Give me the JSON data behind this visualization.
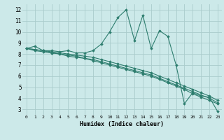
{
  "xlabel": "Humidex (Indice chaleur)",
  "bg_color": "#cce9e9",
  "line_color": "#2d7d6e",
  "grid_color": "#aacccc",
  "x_ticks": [
    0,
    1,
    2,
    3,
    4,
    5,
    6,
    7,
    8,
    9,
    10,
    11,
    12,
    13,
    14,
    15,
    16,
    17,
    18,
    19,
    20,
    21,
    22,
    23
  ],
  "y_ticks": [
    3,
    4,
    5,
    6,
    7,
    8,
    9,
    10,
    11,
    12
  ],
  "ylim": [
    2.5,
    12.5
  ],
  "xlim": [
    -0.5,
    23.5
  ],
  "series": [
    [
      8.5,
      8.7,
      8.3,
      8.3,
      8.2,
      8.3,
      8.1,
      8.1,
      8.3,
      8.9,
      10.0,
      11.3,
      12.0,
      9.2,
      11.5,
      8.5,
      10.1,
      9.6,
      7.0,
      3.5,
      4.5,
      4.2,
      4.1,
      2.8
    ],
    [
      8.5,
      8.3,
      8.2,
      8.1,
      8.0,
      7.8,
      7.7,
      7.6,
      7.4,
      7.2,
      7.0,
      6.8,
      6.6,
      6.4,
      6.2,
      6.0,
      5.7,
      5.4,
      5.1,
      4.8,
      4.4,
      4.1,
      3.8,
      3.5
    ],
    [
      8.5,
      8.4,
      8.3,
      8.1,
      8.0,
      7.9,
      7.8,
      7.6,
      7.5,
      7.3,
      7.1,
      6.9,
      6.7,
      6.5,
      6.3,
      6.1,
      5.8,
      5.5,
      5.2,
      4.9,
      4.6,
      4.3,
      4.0,
      3.6
    ],
    [
      8.5,
      8.4,
      8.3,
      8.2,
      8.1,
      8.0,
      7.9,
      7.8,
      7.7,
      7.5,
      7.3,
      7.1,
      6.9,
      6.7,
      6.5,
      6.3,
      6.0,
      5.7,
      5.4,
      5.1,
      4.8,
      4.5,
      4.2,
      3.8
    ]
  ]
}
